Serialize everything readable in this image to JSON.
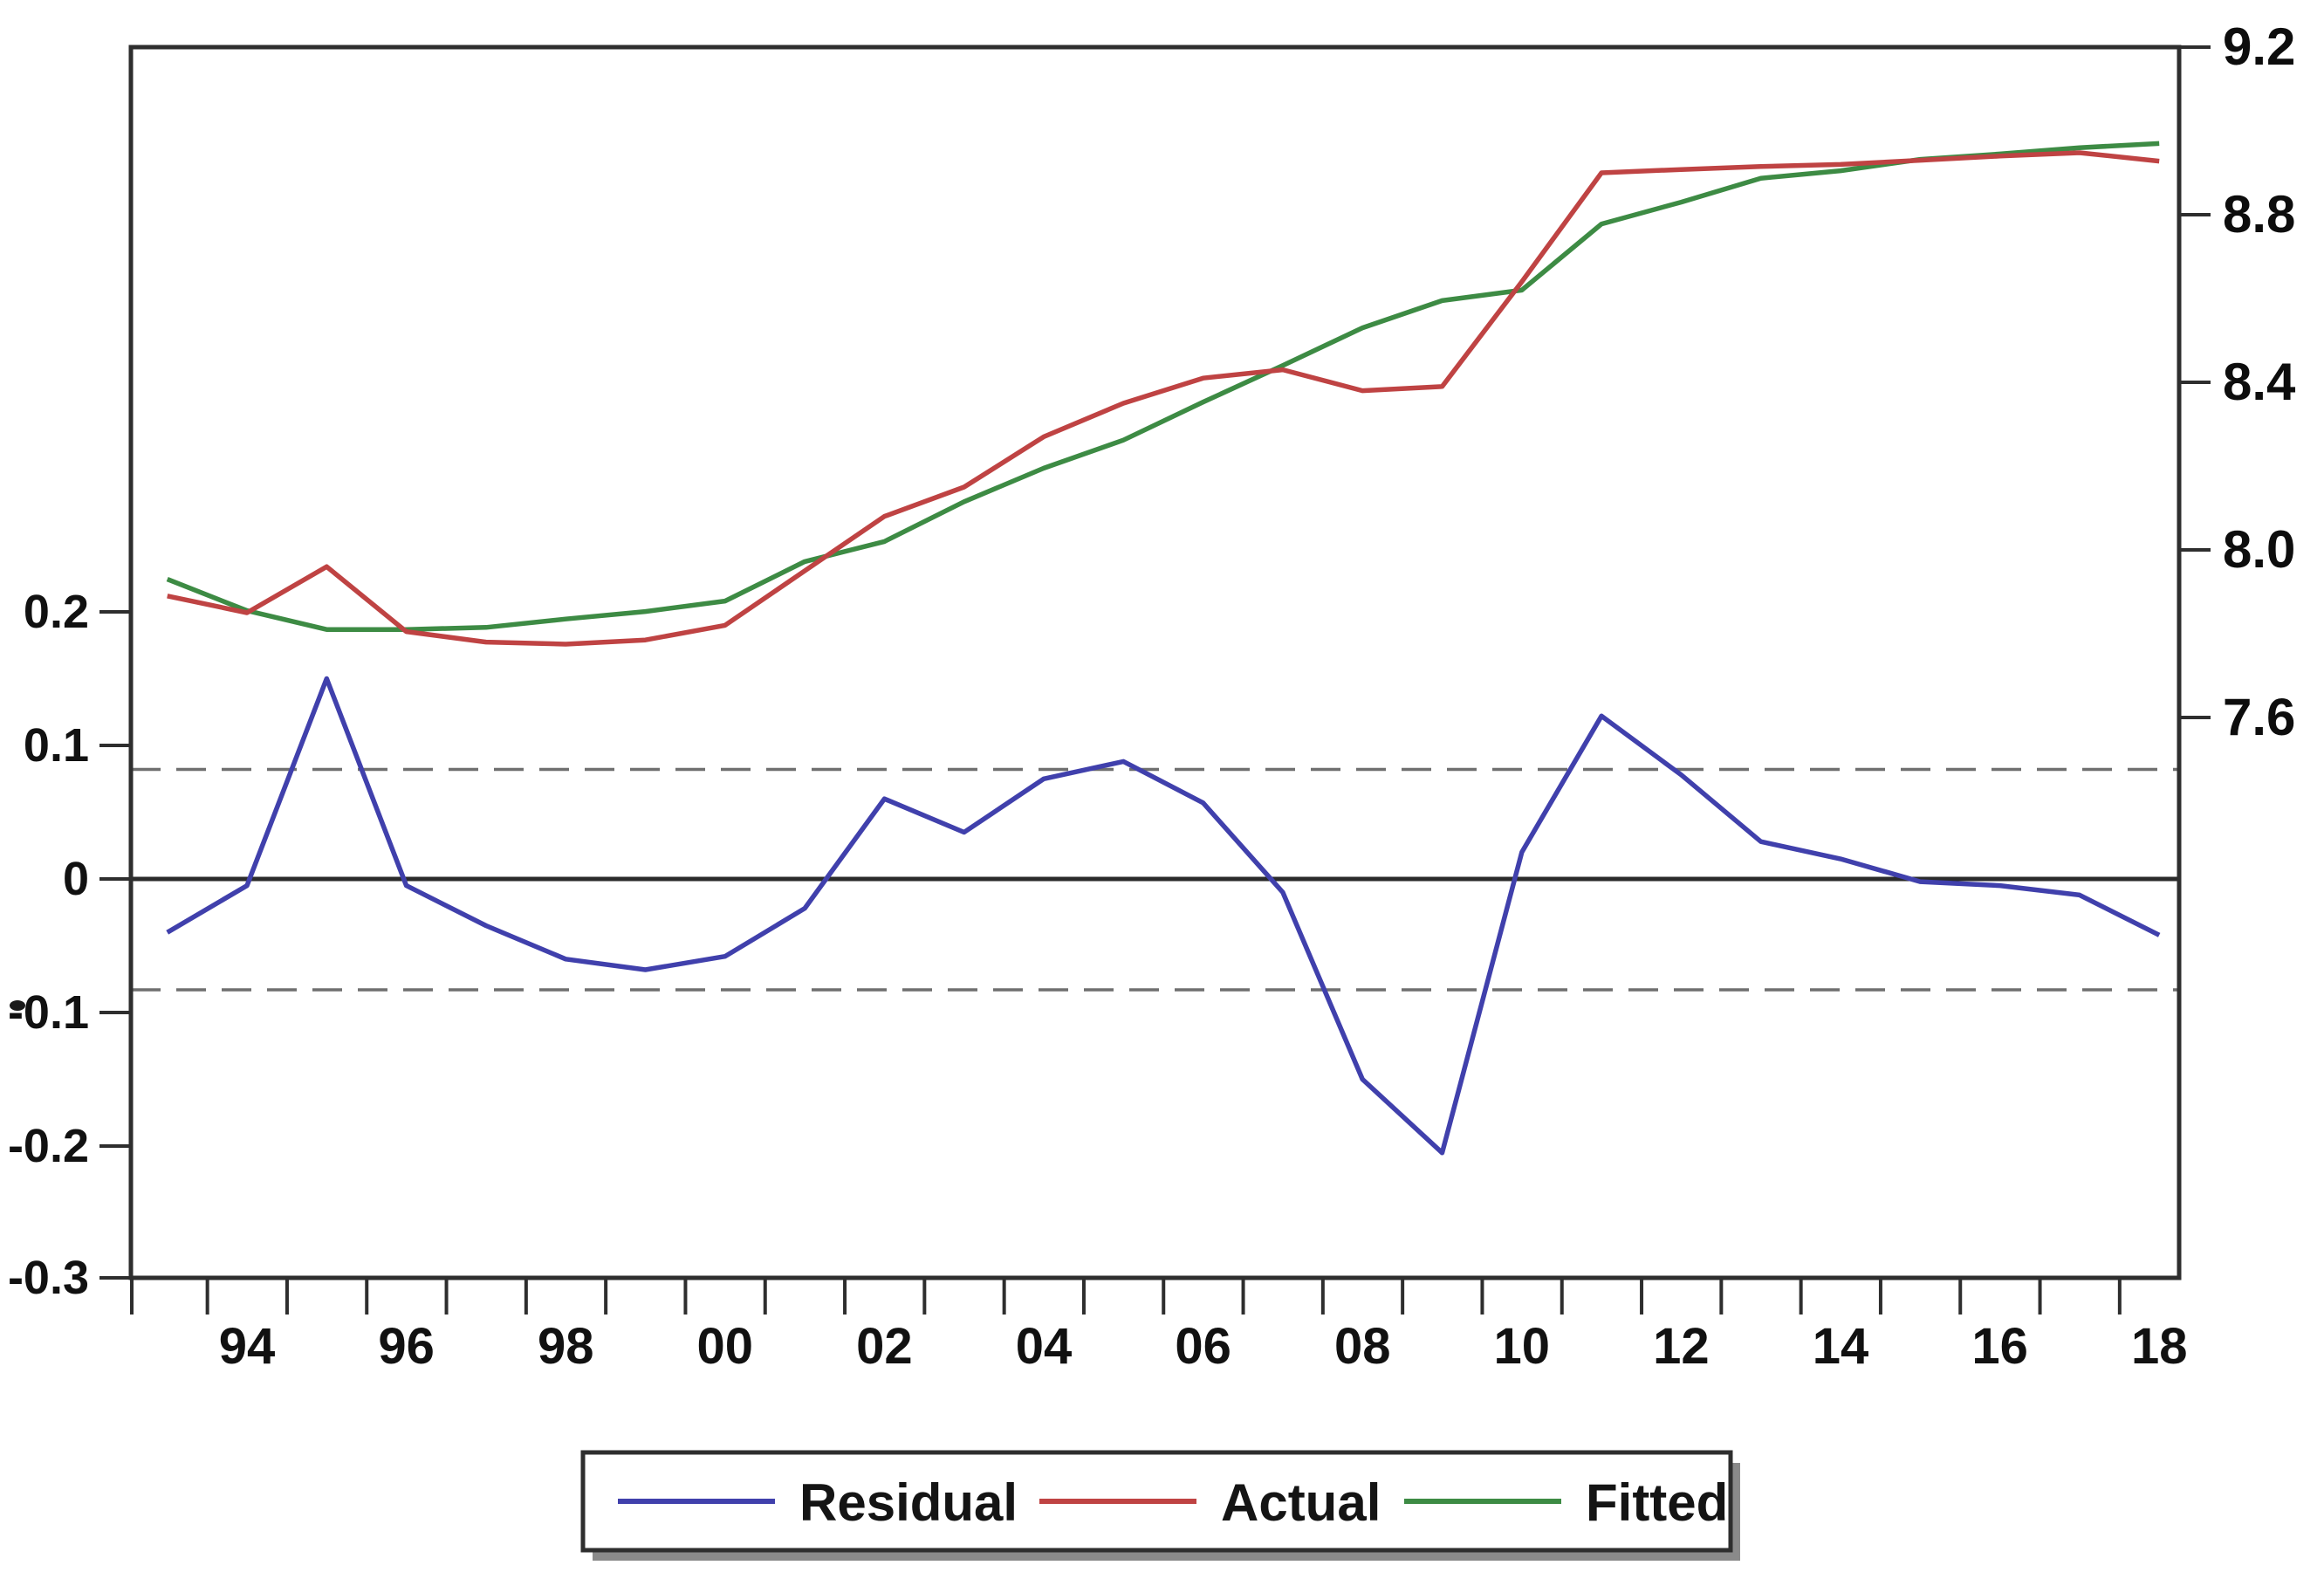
{
  "page": {
    "background": "#ffffff"
  },
  "chart_data": {
    "type": "line",
    "title": "",
    "description_visible_text_only": "",
    "x_years": [
      1993,
      1994,
      1995,
      1996,
      1997,
      1998,
      1999,
      2000,
      2001,
      2002,
      2003,
      2004,
      2005,
      2006,
      2007,
      2008,
      2009,
      2010,
      2011,
      2012,
      2013,
      2014,
      2015,
      2016,
      2017,
      2018
    ],
    "x_tick_labels": [
      {
        "label": "94",
        "year": 1994
      },
      {
        "label": "96",
        "year": 1996
      },
      {
        "label": "98",
        "year": 1998
      },
      {
        "label": "00",
        "year": 2000
      },
      {
        "label": "02",
        "year": 2002
      },
      {
        "label": "04",
        "year": 2004
      },
      {
        "label": "06",
        "year": 2006
      },
      {
        "label": "08",
        "year": 2008
      },
      {
        "label": "10",
        "year": 2010
      },
      {
        "label": "12",
        "year": 2012
      },
      {
        "label": "14",
        "year": 2014
      },
      {
        "label": "16",
        "year": 2016
      },
      {
        "label": "18",
        "year": 2018
      }
    ],
    "left_axis": {
      "side": "left",
      "applies_to": "Residual",
      "ticks": [
        {
          "label": "0.2",
          "value": 0.2
        },
        {
          "label": "0.1",
          "value": 0.1
        },
        {
          "label": "0",
          "value": 0.0
        },
        {
          "label": "-0.1",
          "value": -0.1
        },
        {
          "label": "-0.2",
          "value": -0.2
        },
        {
          "label": "-0.3",
          "value": -0.3
        }
      ]
    },
    "right_axis": {
      "side": "right",
      "applies_to": "Actual, Fitted",
      "ticks": [
        {
          "label": "9.2",
          "value": 9.2
        },
        {
          "label": "8.8",
          "value": 8.8
        },
        {
          "label": "8.4",
          "value": 8.4
        },
        {
          "label": "8.0",
          "value": 8.0
        },
        {
          "label": "7.6",
          "value": 7.6
        }
      ]
    },
    "reference_lines": {
      "zero_line": 0,
      "upper_band": 0.082,
      "lower_band": -0.083,
      "band_style": "dashed",
      "band_color": "#6f6f6f",
      "zero_color": "#2b2b2b"
    },
    "grid": "off",
    "series": [
      {
        "name": "Residual",
        "axis": "left",
        "color": "#4040ac",
        "values": [
          -0.04,
          -0.005,
          0.15,
          -0.005,
          -0.035,
          -0.06,
          -0.068,
          -0.058,
          -0.022,
          0.06,
          0.035,
          0.075,
          0.088,
          0.057,
          -0.01,
          -0.15,
          -0.205,
          0.02,
          0.122,
          0.078,
          0.028,
          0.015,
          -0.002,
          -0.005,
          -0.012,
          -0.042
        ]
      },
      {
        "name": "Actual",
        "axis": "right",
        "color": "#bf4343",
        "values": [
          7.89,
          7.85,
          7.96,
          7.805,
          7.78,
          7.775,
          7.785,
          7.82,
          7.95,
          8.08,
          8.15,
          8.27,
          8.35,
          8.41,
          8.43,
          8.38,
          8.39,
          8.64,
          8.9,
          8.908,
          8.915,
          8.92,
          8.93,
          8.94,
          8.948,
          8.928
        ]
      },
      {
        "name": "Fitted",
        "axis": "right",
        "color": "#3d8b44",
        "values": [
          7.93,
          7.855,
          7.81,
          7.81,
          7.815,
          7.835,
          7.853,
          7.878,
          7.972,
          8.02,
          8.115,
          8.195,
          8.262,
          8.353,
          8.44,
          8.53,
          8.595,
          8.62,
          8.778,
          8.83,
          8.887,
          8.905,
          8.932,
          8.945,
          8.96,
          8.97
        ]
      }
    ],
    "legend": {
      "position": "bottom",
      "border": true,
      "items": [
        {
          "label": "Residual",
          "color": "#4040ac"
        },
        {
          "label": "Actual",
          "color": "#bf4343"
        },
        {
          "label": "Fitted",
          "color": "#3d8b44"
        }
      ]
    },
    "plot_background": "#ffffff",
    "border_color": "#2e2e2e"
  }
}
